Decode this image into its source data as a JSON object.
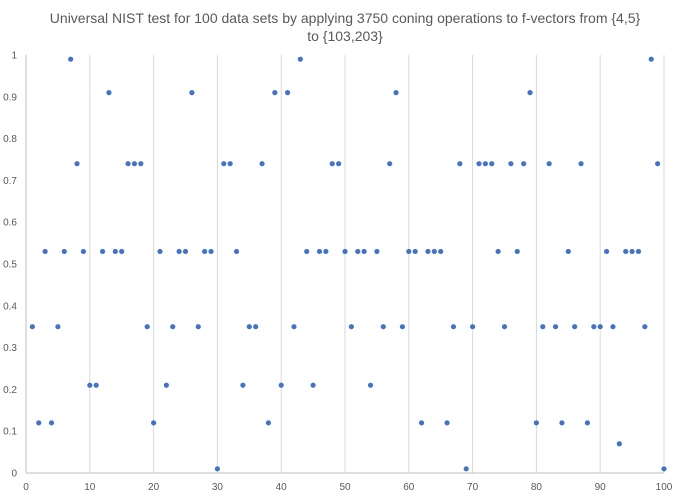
{
  "chart_data": {
    "type": "scatter",
    "title_line1": "Universal NIST test for 100 data sets by applying 3750 coning operations to f-vectors from {4,5}",
    "title_line2": "to {103,203}",
    "xlabel": "",
    "ylabel": "",
    "xlim": [
      0,
      100
    ],
    "ylim": [
      0,
      1
    ],
    "x_ticks": [
      "0",
      "10",
      "20",
      "30",
      "40",
      "50",
      "60",
      "70",
      "80",
      "90",
      "100"
    ],
    "y_ticks": [
      "0",
      "0.1",
      "0.2",
      "0.3",
      "0.4",
      "0.5",
      "0.6",
      "0.7",
      "0.8",
      "0.9",
      "1"
    ],
    "grid": "vertical",
    "marker_color": "#4472C4",
    "x": [
      1,
      2,
      3,
      4,
      5,
      6,
      7,
      8,
      9,
      10,
      11,
      12,
      13,
      14,
      15,
      16,
      17,
      18,
      19,
      20,
      21,
      22,
      23,
      24,
      25,
      26,
      27,
      28,
      29,
      30,
      31,
      32,
      33,
      34,
      35,
      36,
      37,
      38,
      39,
      40,
      41,
      42,
      43,
      44,
      45,
      46,
      47,
      48,
      49,
      50,
      51,
      52,
      53,
      54,
      55,
      56,
      57,
      58,
      59,
      60,
      61,
      62,
      63,
      64,
      65,
      66,
      67,
      68,
      69,
      70,
      71,
      72,
      73,
      74,
      75,
      76,
      77,
      78,
      79,
      80,
      81,
      82,
      83,
      84,
      85,
      86,
      87,
      88,
      89,
      90,
      91,
      92,
      93,
      94,
      95,
      96,
      97,
      98,
      99,
      100
    ],
    "y": [
      0.35,
      0.12,
      0.53,
      0.12,
      0.35,
      0.53,
      0.99,
      0.74,
      0.53,
      0.21,
      0.21,
      0.53,
      0.91,
      0.53,
      0.53,
      0.74,
      0.74,
      0.74,
      0.35,
      0.12,
      0.53,
      0.21,
      0.35,
      0.53,
      0.53,
      0.91,
      0.35,
      0.53,
      0.53,
      0.01,
      0.74,
      0.74,
      0.53,
      0.21,
      0.35,
      0.35,
      0.74,
      0.12,
      0.91,
      0.21,
      0.91,
      0.35,
      0.99,
      0.53,
      0.21,
      0.53,
      0.53,
      0.74,
      0.74,
      0.53,
      0.35,
      0.53,
      0.53,
      0.21,
      0.53,
      0.35,
      0.74,
      0.91,
      0.35,
      0.53,
      0.53,
      0.12,
      0.53,
      0.53,
      0.53,
      0.12,
      0.35,
      0.74,
      0.01,
      0.35,
      0.74,
      0.74,
      0.74,
      0.53,
      0.35,
      0.74,
      0.53,
      0.74,
      0.91,
      0.12,
      0.35,
      0.74,
      0.35,
      0.12,
      0.53,
      0.35,
      0.74,
      0.12,
      0.35,
      0.35,
      0.53,
      0.35,
      0.07,
      0.53,
      0.53,
      0.53,
      0.35,
      0.99,
      0.74,
      0.01
    ]
  }
}
